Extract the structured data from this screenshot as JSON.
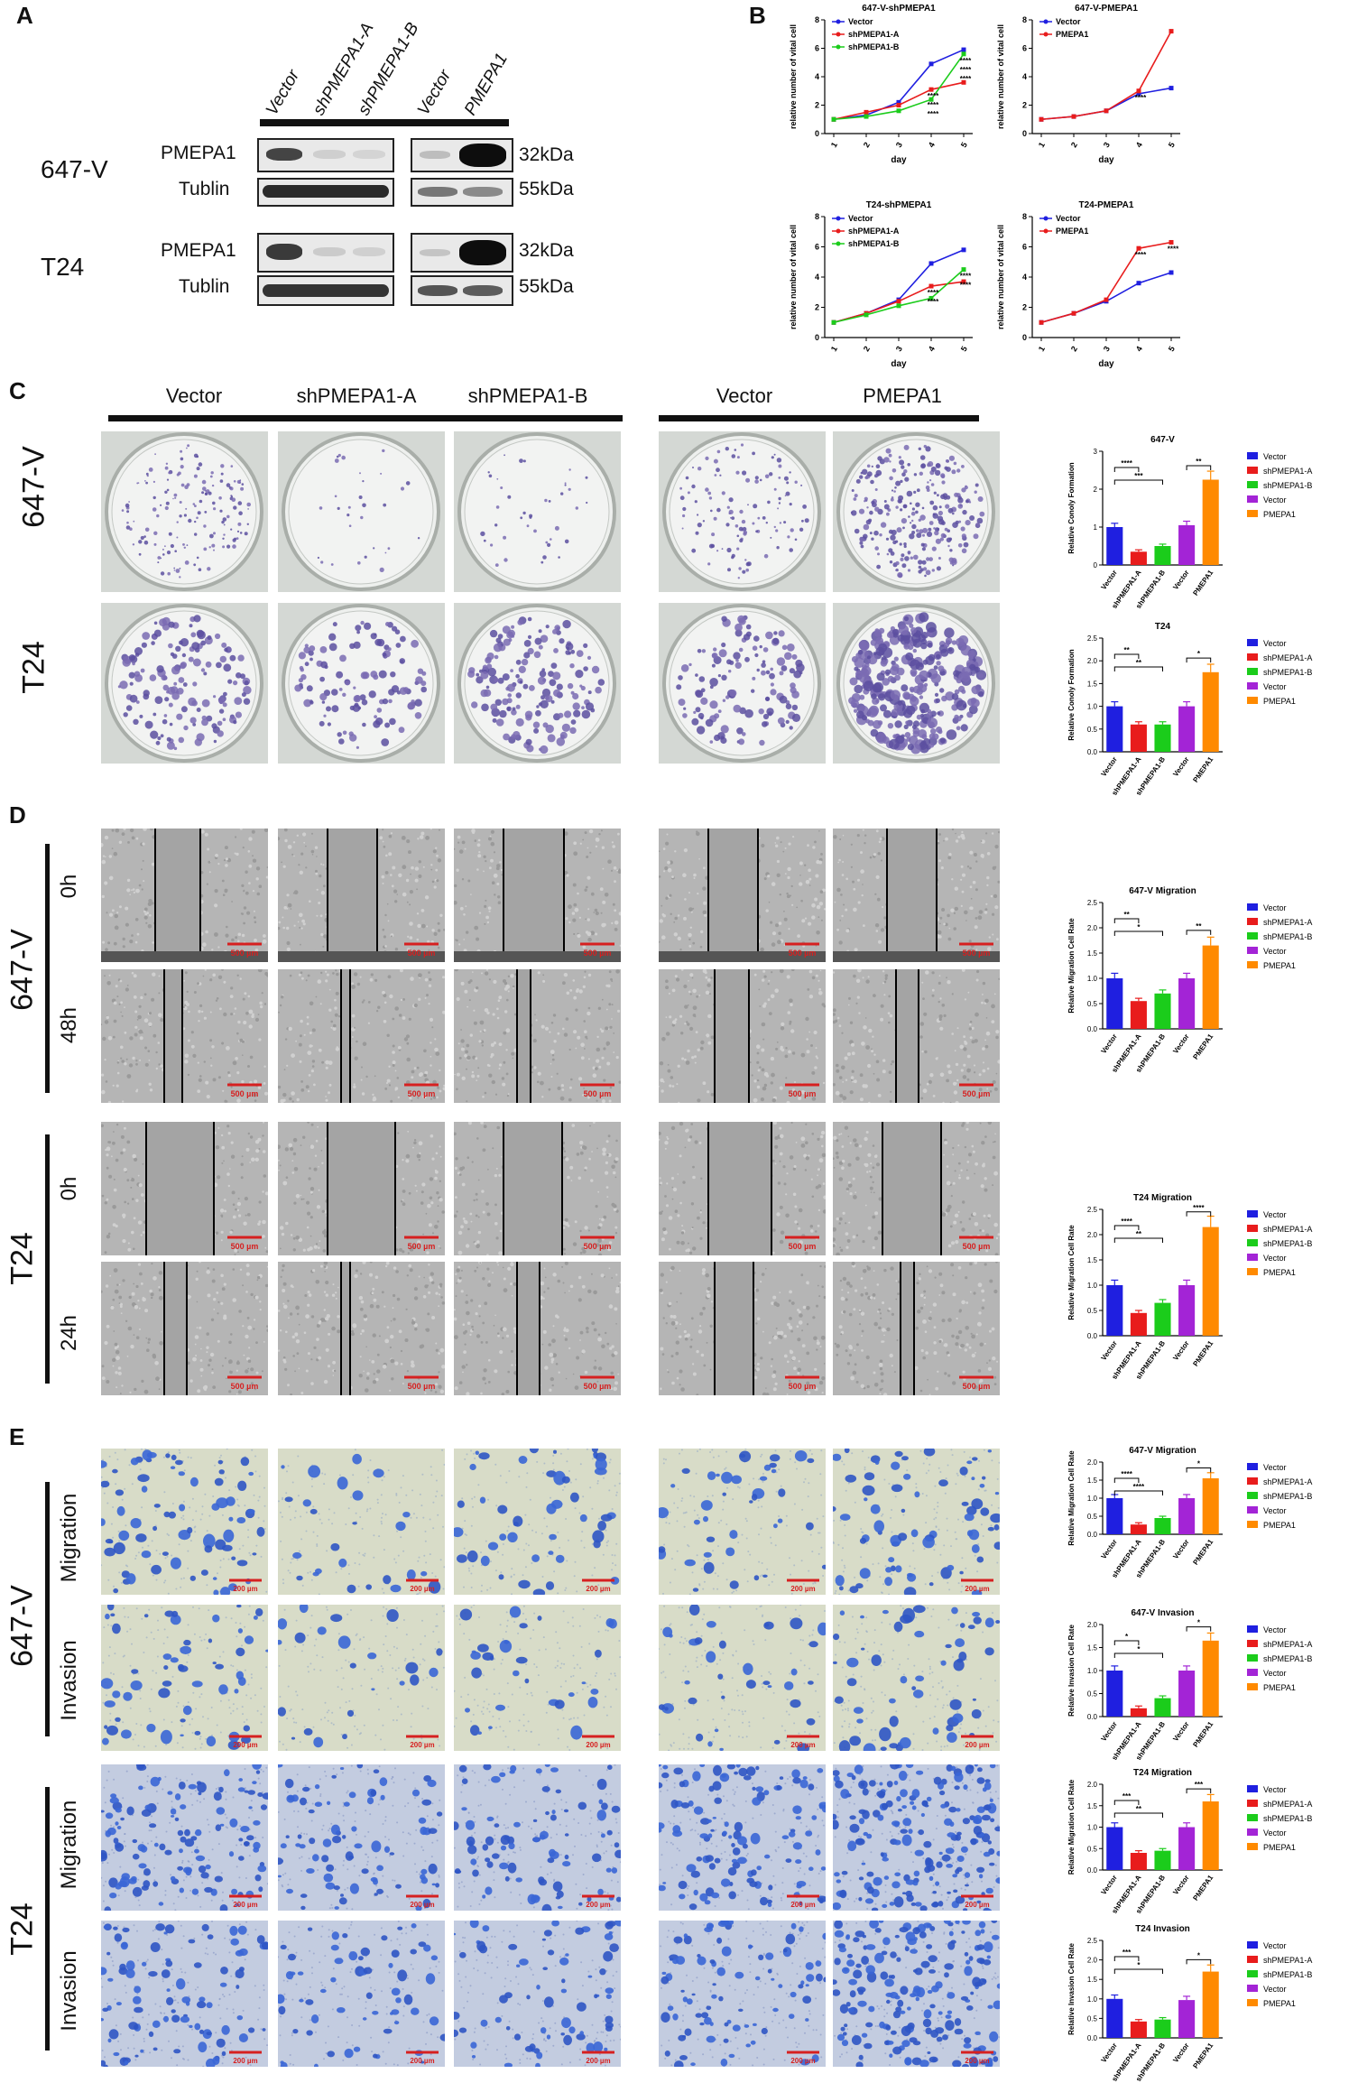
{
  "panels": {
    "A": {
      "letter": "A",
      "lanes": [
        "Vector",
        "shPMEPA1-A",
        "shPMEPA1-B",
        "Vector",
        "PMEPA1"
      ],
      "rows": [
        {
          "cell": "647-V",
          "proteins": [
            {
              "name": "PMEPA1",
              "kda": "32kDa"
            },
            {
              "name": "Tublin",
              "kda": "55kDa"
            }
          ]
        },
        {
          "cell": "T24",
          "proteins": [
            {
              "name": "PMEPA1",
              "kda": "32kDa"
            },
            {
              "name": "Tublin",
              "kda": "55kDa"
            }
          ]
        }
      ]
    },
    "B": {
      "letter": "B"
    },
    "C": {
      "letter": "C",
      "columns": [
        "Vector",
        "shPMEPA1-A",
        "shPMEPA1-B",
        "Vector",
        "PMEPA1"
      ],
      "rows": [
        "647-V",
        "T24"
      ]
    },
    "D": {
      "letter": "D",
      "rows": [
        "647-V",
        "T24"
      ],
      "times_647": [
        "0h",
        "48h"
      ],
      "times_t24": [
        "0h",
        "24h"
      ],
      "scale": "500 µm"
    },
    "E": {
      "letter": "E",
      "rows": [
        "647-V",
        "T24"
      ],
      "assays": [
        "Migration",
        "Invasion"
      ],
      "scale": "200 µm"
    }
  },
  "colors": {
    "vector_blue": "#1f1fe0",
    "sh_a_red": "#e81c1c",
    "sh_b_green": "#1bcc1b",
    "vector_purple": "#a324d6",
    "pmepa1_orange": "#ff8a00"
  },
  "chart_data": [
    {
      "type": "line",
      "title": "647-V-shPMEPA1",
      "xlabel": "day",
      "ylabel": "relative number of vital cell",
      "x": [
        1,
        2,
        3,
        4,
        5
      ],
      "ylim": [
        0,
        8
      ],
      "yticks": [
        0,
        2,
        4,
        6,
        8
      ],
      "series": [
        {
          "name": "Vector",
          "color": "#1f1fe0",
          "values": [
            1.0,
            1.3,
            2.2,
            4.9,
            5.9
          ]
        },
        {
          "name": "shPMEPA1-A",
          "color": "#e81c1c",
          "values": [
            1.0,
            1.5,
            2.0,
            3.1,
            3.6
          ]
        },
        {
          "name": "shPMEPA1-B",
          "color": "#1bcc1b",
          "values": [
            1.0,
            1.2,
            1.6,
            2.4,
            5.6
          ]
        }
      ],
      "annotations": [
        "****",
        "****",
        "****",
        "****",
        "****",
        "****"
      ]
    },
    {
      "type": "line",
      "title": "647-V-PMEPA1",
      "xlabel": "day",
      "ylabel": "relative number of vital cell",
      "x": [
        1,
        2,
        3,
        4,
        5
      ],
      "ylim": [
        0,
        8
      ],
      "yticks": [
        0,
        2,
        4,
        6,
        8
      ],
      "series": [
        {
          "name": "Vector",
          "color": "#1f1fe0",
          "values": [
            1.0,
            1.2,
            1.6,
            2.8,
            3.2
          ]
        },
        {
          "name": "PMEPA1",
          "color": "#e81c1c",
          "values": [
            1.0,
            1.2,
            1.6,
            3.0,
            7.2
          ]
        }
      ],
      "annotations": [
        "****"
      ]
    },
    {
      "type": "line",
      "title": "T24-shPMEPA1",
      "xlabel": "day",
      "ylabel": "relative number of vital cell",
      "x": [
        1,
        2,
        3,
        4,
        5
      ],
      "ylim": [
        0,
        8
      ],
      "yticks": [
        0,
        2,
        4,
        6,
        8
      ],
      "series": [
        {
          "name": "Vector",
          "color": "#1f1fe0",
          "values": [
            1.0,
            1.6,
            2.5,
            4.9,
            5.8
          ]
        },
        {
          "name": "shPMEPA1-A",
          "color": "#e81c1c",
          "values": [
            1.0,
            1.6,
            2.4,
            3.4,
            3.7
          ]
        },
        {
          "name": "shPMEPA1-B",
          "color": "#1bcc1b",
          "values": [
            1.0,
            1.5,
            2.1,
            2.6,
            4.5
          ]
        }
      ],
      "annotations": [
        "****",
        "****",
        "****",
        "****"
      ]
    },
    {
      "type": "line",
      "title": "T24-PMEPA1",
      "xlabel": "day",
      "ylabel": "relative number of vital cell",
      "x": [
        1,
        2,
        3,
        4,
        5
      ],
      "ylim": [
        0,
        8
      ],
      "yticks": [
        0,
        2,
        4,
        6,
        8
      ],
      "series": [
        {
          "name": "Vector",
          "color": "#1f1fe0",
          "values": [
            1.0,
            1.6,
            2.4,
            3.6,
            4.3
          ]
        },
        {
          "name": "PMEPA1",
          "color": "#e81c1c",
          "values": [
            1.0,
            1.6,
            2.5,
            5.9,
            6.3
          ]
        }
      ],
      "annotations": [
        "****",
        "****"
      ]
    },
    {
      "type": "bar",
      "title": "647-V",
      "ylabel": "Relative Conoly Formation",
      "categories": [
        "Vector",
        "shPMEPA1-A",
        "shPMEPA1-B",
        "Vector",
        "PMEPA1"
      ],
      "values": [
        1.0,
        0.35,
        0.5,
        1.05,
        2.25
      ],
      "ylim": [
        0,
        3.0
      ],
      "yticks": [
        0,
        1,
        2,
        3
      ],
      "colors": [
        "#1f1fe0",
        "#e81c1c",
        "#1bcc1b",
        "#a324d6",
        "#ff8a00"
      ],
      "sig": [
        {
          "from": 0,
          "to": 1,
          "label": "****"
        },
        {
          "from": 0,
          "to": 2,
          "label": "***"
        },
        {
          "from": 3,
          "to": 4,
          "label": "**"
        }
      ]
    },
    {
      "type": "bar",
      "title": "T24",
      "ylabel": "Relative Conoly Formation",
      "categories": [
        "Vector",
        "shPMEPA1-A",
        "shPMEPA1-B",
        "Vector",
        "PMEPA1"
      ],
      "values": [
        1.0,
        0.6,
        0.6,
        1.0,
        1.75
      ],
      "ylim": [
        0,
        2.5
      ],
      "yticks": [
        0.0,
        0.5,
        1.0,
        1.5,
        2.0,
        2.5
      ],
      "colors": [
        "#1f1fe0",
        "#e81c1c",
        "#1bcc1b",
        "#a324d6",
        "#ff8a00"
      ],
      "sig": [
        {
          "from": 0,
          "to": 1,
          "label": "**"
        },
        {
          "from": 0,
          "to": 2,
          "label": "**"
        },
        {
          "from": 3,
          "to": 4,
          "label": "*"
        }
      ]
    },
    {
      "type": "bar",
      "title": "647-V Migration",
      "ylabel": "Relative Migration Cell Rate",
      "categories": [
        "Vector",
        "shPMEPA1-A",
        "shPMEPA1-B",
        "Vector",
        "PMEPA1"
      ],
      "values": [
        1.0,
        0.55,
        0.7,
        1.0,
        1.65
      ],
      "ylim": [
        0,
        2.5
      ],
      "yticks": [
        0.0,
        0.5,
        1.0,
        1.5,
        2.0,
        2.5
      ],
      "colors": [
        "#1f1fe0",
        "#e81c1c",
        "#1bcc1b",
        "#a324d6",
        "#ff8a00"
      ],
      "sig": [
        {
          "from": 0,
          "to": 1,
          "label": "**"
        },
        {
          "from": 0,
          "to": 2,
          "label": "*"
        },
        {
          "from": 3,
          "to": 4,
          "label": "**"
        }
      ]
    },
    {
      "type": "bar",
      "title": "T24 Migration",
      "ylabel": "Relative Migration Cell Rate",
      "categories": [
        "Vector",
        "shPMEPA1-A",
        "shPMEPA1-B",
        "Vector",
        "PMEPA1"
      ],
      "values": [
        1.0,
        0.45,
        0.65,
        1.0,
        2.15
      ],
      "ylim": [
        0,
        2.5
      ],
      "yticks": [
        0.0,
        0.5,
        1.0,
        1.5,
        2.0,
        2.5
      ],
      "colors": [
        "#1f1fe0",
        "#e81c1c",
        "#1bcc1b",
        "#a324d6",
        "#ff8a00"
      ],
      "sig": [
        {
          "from": 0,
          "to": 1,
          "label": "****"
        },
        {
          "from": 0,
          "to": 2,
          "label": "**"
        },
        {
          "from": 3,
          "to": 4,
          "label": "****"
        }
      ]
    },
    {
      "type": "bar",
      "title": "647-V Migration",
      "ylabel": "Relative Migration Cell Rate",
      "categories": [
        "Vector",
        "shPMEPA1-A",
        "shPMEPA1-B",
        "Vector",
        "PMEPA1"
      ],
      "values": [
        1.0,
        0.27,
        0.45,
        1.0,
        1.55
      ],
      "ylim": [
        0,
        2.0
      ],
      "yticks": [
        0.0,
        0.5,
        1.0,
        1.5,
        2.0
      ],
      "colors": [
        "#1f1fe0",
        "#e81c1c",
        "#1bcc1b",
        "#a324d6",
        "#ff8a00"
      ],
      "sig": [
        {
          "from": 0,
          "to": 1,
          "label": "****"
        },
        {
          "from": 0,
          "to": 2,
          "label": "****"
        },
        {
          "from": 3,
          "to": 4,
          "label": "*"
        }
      ]
    },
    {
      "type": "bar",
      "title": "647-V Invasion",
      "ylabel": "Relative Invasion Cell Rate",
      "categories": [
        "Vector",
        "shPMEPA1-A",
        "shPMEPA1-B",
        "Vector",
        "PMEPA1"
      ],
      "values": [
        1.0,
        0.18,
        0.4,
        1.0,
        1.65
      ],
      "ylim": [
        0,
        2.0
      ],
      "yticks": [
        0.0,
        0.5,
        1.0,
        1.5,
        2.0
      ],
      "colors": [
        "#1f1fe0",
        "#e81c1c",
        "#1bcc1b",
        "#a324d6",
        "#ff8a00"
      ],
      "sig": [
        {
          "from": 0,
          "to": 1,
          "label": "*"
        },
        {
          "from": 0,
          "to": 2,
          "label": "*"
        },
        {
          "from": 3,
          "to": 4,
          "label": "*"
        }
      ]
    },
    {
      "type": "bar",
      "title": "T24 Migration",
      "ylabel": "Relative Migration Cell Rate",
      "categories": [
        "Vector",
        "shPMEPA1-A",
        "shPMEPA1-B",
        "Vector",
        "PMEPA1"
      ],
      "values": [
        1.0,
        0.4,
        0.45,
        1.0,
        1.6
      ],
      "ylim": [
        0,
        2.0
      ],
      "yticks": [
        0.0,
        0.5,
        1.0,
        1.5,
        2.0
      ],
      "colors": [
        "#1f1fe0",
        "#e81c1c",
        "#1bcc1b",
        "#a324d6",
        "#ff8a00"
      ],
      "sig": [
        {
          "from": 0,
          "to": 1,
          "label": "***"
        },
        {
          "from": 0,
          "to": 2,
          "label": "**"
        },
        {
          "from": 3,
          "to": 4,
          "label": "***"
        }
      ]
    },
    {
      "type": "bar",
      "title": "T24 Invasion",
      "ylabel": "Relative Invasion Cell Rate",
      "categories": [
        "Vector",
        "shPMEPA1-A",
        "shPMEPA1-B",
        "Vector",
        "PMEPA1"
      ],
      "values": [
        1.0,
        0.42,
        0.47,
        0.97,
        1.7
      ],
      "ylim": [
        0,
        2.5
      ],
      "yticks": [
        0.0,
        0.5,
        1.0,
        1.5,
        2.0,
        2.5
      ],
      "colors": [
        "#1f1fe0",
        "#e81c1c",
        "#1bcc1b",
        "#a324d6",
        "#ff8a00"
      ],
      "sig": [
        {
          "from": 0,
          "to": 1,
          "label": "***"
        },
        {
          "from": 0,
          "to": 2,
          "label": "*"
        },
        {
          "from": 3,
          "to": 4,
          "label": "*"
        }
      ]
    }
  ]
}
